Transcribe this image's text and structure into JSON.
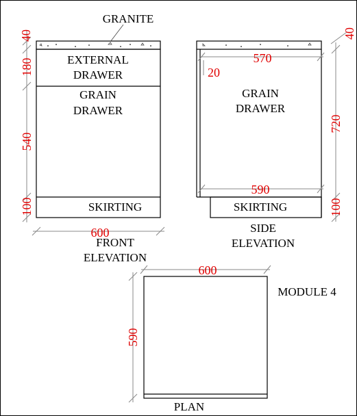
{
  "colors": {
    "dimension_text": "#e00000",
    "line": "#000000",
    "dimension_line": "#888888"
  },
  "labels": {
    "granite": "GRANITE",
    "external_drawer_1": "EXTERNAL",
    "external_drawer_2": "DRAWER",
    "grain_drawer_front_1": "GRAIN",
    "grain_drawer_front_2": "DRAWER",
    "skirting_front": "SKIRTING",
    "front_elevation_1": "FRONT",
    "front_elevation_2": "ELEVATION",
    "grain_drawer_side_1": "GRAIN",
    "grain_drawer_side_2": "DRAWER",
    "skirting_side": "SKIRTING",
    "side_elevation_1": "SIDE",
    "side_elevation_2": "ELEVATION",
    "module": "MODULE 4",
    "plan": "PLAN"
  },
  "dimensions": {
    "front_granite": "40",
    "front_external": "180",
    "front_grain": "540",
    "front_skirting": "100",
    "front_width": "600",
    "side_granite": "40",
    "side_top_width": "570",
    "side_panel": "20",
    "side_height": "720",
    "side_bottom_width": "590",
    "side_skirting": "100",
    "plan_width": "600",
    "plan_depth": "590"
  }
}
